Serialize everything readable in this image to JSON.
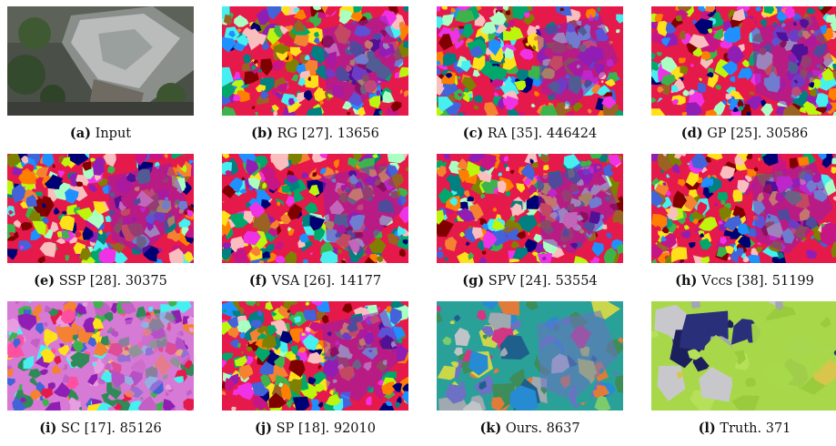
{
  "figure": {
    "panels": [
      {
        "id": "input",
        "tag": "(a)",
        "label": "Input",
        "count": "",
        "palette": "photo"
      },
      {
        "id": "rg",
        "tag": "(b)",
        "label": "RG [27].",
        "count": "13656",
        "palette": "vivid"
      },
      {
        "id": "ra",
        "tag": "(c)",
        "label": "RA [35].",
        "count": "446424",
        "palette": "vivid"
      },
      {
        "id": "gp",
        "tag": "(d)",
        "label": "GP [25].",
        "count": "30586",
        "palette": "vivid"
      },
      {
        "id": "ssp",
        "tag": "(e)",
        "label": "SSP [28].",
        "count": "30375",
        "palette": "vivid"
      },
      {
        "id": "vsa",
        "tag": "(f)",
        "label": "VSA [26].",
        "count": "14177",
        "palette": "vivid"
      },
      {
        "id": "spv",
        "tag": "(g)",
        "label": "SPV [24].",
        "count": "53554",
        "palette": "vivid"
      },
      {
        "id": "vccs",
        "tag": "(h)",
        "label": "Vccs [38].",
        "count": "51199",
        "palette": "vivid"
      },
      {
        "id": "sc",
        "tag": "(i)",
        "label": "SC [17].",
        "count": "85126",
        "palette": "pinkish"
      },
      {
        "id": "sp",
        "tag": "(j)",
        "label": "SP [18].",
        "count": "92010",
        "palette": "vivid"
      },
      {
        "id": "ours",
        "tag": "(k)",
        "label": "Ours.",
        "count": "8637",
        "palette": "ours"
      },
      {
        "id": "truth",
        "tag": "(l)",
        "label": "Truth.",
        "count": "371",
        "palette": "truth"
      }
    ]
  }
}
